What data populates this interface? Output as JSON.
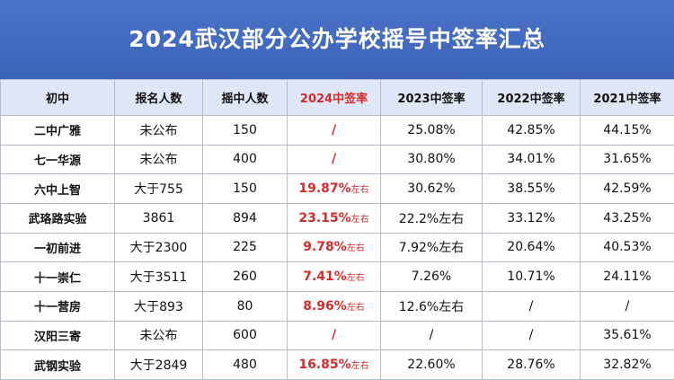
{
  "title": "2024武汉部分公办学校摇号中签率汇总",
  "columns": [
    "初中",
    "报名人数",
    "摇中人数",
    "2024中签率",
    "2023中签率",
    "2022中签率",
    "2021中签率"
  ],
  "rows": [
    {
      "school": "二中广雅",
      "applicants": "未公布",
      "selected": "150",
      "rate_2024": "/",
      "rate_2024_note": "",
      "rate_2023": "25.08%",
      "rate_2022": "42.85%",
      "rate_2021": "44.15%"
    },
    {
      "school": "七一华源",
      "applicants": "未公布",
      "selected": "400",
      "rate_2024": "/",
      "rate_2024_note": "",
      "rate_2023": "30.80%",
      "rate_2022": "34.01%",
      "rate_2021": "31.65%"
    },
    {
      "school": "六中上智",
      "applicants": "大于755",
      "selected": "150",
      "rate_2024": "19.87%",
      "rate_2024_note": "左右",
      "rate_2023": "30.62%",
      "rate_2022": "38.55%",
      "rate_2021": "42.59%"
    },
    {
      "school": "武珞路实验",
      "applicants": "3861",
      "selected": "894",
      "rate_2024": "23.15%",
      "rate_2024_note": "左右",
      "rate_2023": "22.2%左右",
      "rate_2022": "33.12%",
      "rate_2021": "43.25%"
    },
    {
      "school": "一初前进",
      "applicants": "大于2300",
      "selected": "225",
      "rate_2024": "9.78%",
      "rate_2024_note": "左右",
      "rate_2023": "7.92%左右",
      "rate_2022": "20.64%",
      "rate_2021": "40.53%"
    },
    {
      "school": "十一崇仁",
      "applicants": "大于3511",
      "selected": "260",
      "rate_2024": "7.41%",
      "rate_2024_note": "左右",
      "rate_2023": "7.26%",
      "rate_2022": "10.71%",
      "rate_2021": "24.11%"
    },
    {
      "school": "十一营房",
      "applicants": "大于893",
      "selected": "80",
      "rate_2024": "8.96%",
      "rate_2024_note": "左右",
      "rate_2023": "12.6%左右",
      "rate_2022": "/",
      "rate_2021": "/"
    },
    {
      "school": "汉阳三寄",
      "applicants": "未公布",
      "selected": "600",
      "rate_2024": "/",
      "rate_2024_note": "",
      "rate_2023": "/",
      "rate_2022": "/",
      "rate_2021": "35.61%"
    },
    {
      "school": "武钢实验",
      "applicants": "大于2849",
      "selected": "480",
      "rate_2024": "16.85%",
      "rate_2024_note": "左右",
      "rate_2023": "22.60%",
      "rate_2022": "28.76%",
      "rate_2021": "32.82%"
    }
  ]
}
